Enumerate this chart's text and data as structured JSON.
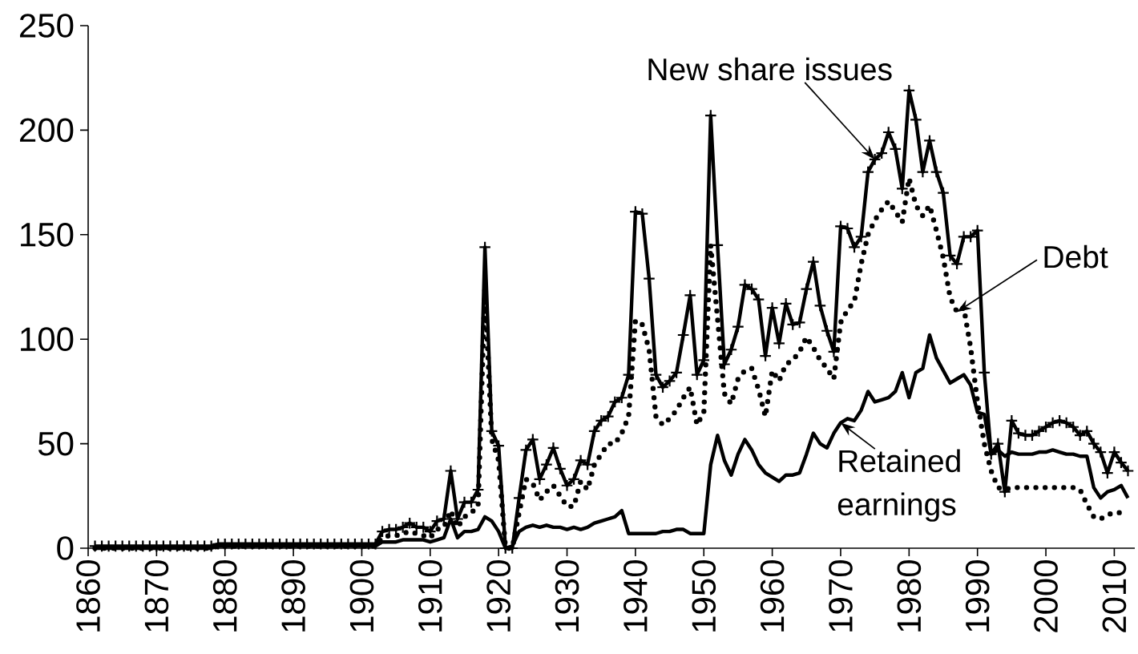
{
  "chart_data": {
    "type": "line",
    "x": [
      1861,
      1862,
      1863,
      1864,
      1865,
      1866,
      1867,
      1868,
      1869,
      1870,
      1871,
      1872,
      1873,
      1874,
      1875,
      1876,
      1877,
      1878,
      1879,
      1880,
      1881,
      1882,
      1883,
      1884,
      1885,
      1886,
      1887,
      1888,
      1889,
      1890,
      1891,
      1892,
      1893,
      1894,
      1895,
      1896,
      1897,
      1898,
      1899,
      1900,
      1901,
      1902,
      1903,
      1904,
      1905,
      1906,
      1907,
      1908,
      1909,
      1910,
      1911,
      1912,
      1913,
      1914,
      1915,
      1916,
      1917,
      1918,
      1919,
      1920,
      1921,
      1922,
      1923,
      1924,
      1925,
      1926,
      1927,
      1928,
      1929,
      1930,
      1931,
      1932,
      1933,
      1934,
      1935,
      1936,
      1937,
      1938,
      1939,
      1940,
      1941,
      1942,
      1943,
      1944,
      1945,
      1946,
      1947,
      1948,
      1949,
      1950,
      1951,
      1952,
      1953,
      1954,
      1955,
      1956,
      1957,
      1958,
      1959,
      1960,
      1961,
      1962,
      1963,
      1964,
      1965,
      1966,
      1967,
      1968,
      1969,
      1970,
      1971,
      1972,
      1973,
      1974,
      1975,
      1976,
      1977,
      1978,
      1979,
      1980,
      1981,
      1982,
      1983,
      1984,
      1985,
      1986,
      1987,
      1988,
      1989,
      1990,
      1991,
      1992,
      1993,
      1994,
      1995,
      1996,
      1997,
      1998,
      1999,
      2000,
      2001,
      2002,
      2003,
      2004,
      2005,
      2006,
      2007,
      2008,
      2009,
      2010,
      2011,
      2012
    ],
    "xlim": [
      1860,
      2013
    ],
    "ylim": [
      0,
      250
    ],
    "xticks": [
      1860,
      1870,
      1880,
      1890,
      1900,
      1910,
      1920,
      1930,
      1940,
      1950,
      1960,
      1970,
      1980,
      1990,
      2000,
      2010
    ],
    "yticks": [
      0,
      50,
      100,
      150,
      200,
      250
    ],
    "series": [
      {
        "name": "New share issues",
        "color": "#000000",
        "marker": "cross",
        "line_style": "solid",
        "values": [
          1,
          1,
          1,
          1,
          1,
          1,
          1,
          1,
          1,
          1,
          1,
          1,
          1,
          1,
          1,
          1,
          1,
          1,
          2,
          2,
          2,
          2,
          2,
          2,
          2,
          2,
          2,
          2,
          2,
          2,
          2,
          2,
          2,
          2,
          2,
          2,
          2,
          2,
          2,
          2,
          2,
          2,
          8,
          9,
          9,
          10,
          12,
          10,
          10,
          8,
          13,
          14,
          37,
          14,
          22,
          22,
          28,
          144,
          56,
          49,
          0,
          0,
          24,
          47,
          52,
          33,
          40,
          48,
          38,
          30,
          33,
          42,
          40,
          56,
          61,
          63,
          70,
          72,
          83,
          161,
          160,
          129,
          83,
          77,
          80,
          84,
          102,
          121,
          83,
          90,
          207,
          145,
          88,
          95,
          106,
          126,
          124,
          119,
          92,
          115,
          98,
          117,
          107,
          108,
          124,
          137,
          116,
          104,
          94,
          154,
          153,
          144,
          149,
          180,
          186,
          189,
          199,
          191,
          172,
          219,
          205,
          180,
          195,
          180,
          170,
          140,
          136,
          149,
          149,
          152,
          84,
          45,
          50,
          27,
          61,
          55,
          54,
          54,
          56,
          58,
          60,
          61,
          60,
          58,
          54,
          56,
          50,
          46,
          36,
          46,
          41,
          37
        ]
      },
      {
        "name": "Debt",
        "color": "#000000",
        "marker": "none",
        "line_style": "dotted",
        "values": [
          0,
          0,
          0,
          0,
          0,
          0,
          0,
          0,
          0,
          0,
          0,
          0,
          0,
          0,
          0,
          0,
          0,
          0,
          1,
          1,
          1,
          1,
          1,
          1,
          1,
          1,
          1,
          1,
          1,
          1,
          1,
          1,
          1,
          1,
          1,
          1,
          1,
          1,
          1,
          1,
          1,
          1,
          5,
          6,
          6,
          7,
          8,
          7,
          6,
          5,
          9,
          10,
          18,
          10,
          15,
          17,
          20,
          125,
          52,
          42,
          0,
          0,
          17,
          33,
          31,
          23,
          27,
          30,
          25,
          20,
          20,
          32,
          28,
          40,
          45,
          50,
          50,
          55,
          63,
          109,
          107,
          95,
          63,
          59,
          62,
          66,
          72,
          77,
          59,
          65,
          145,
          110,
          74,
          69,
          81,
          85,
          86,
          76,
          63,
          85,
          80,
          88,
          90,
          94,
          101,
          96,
          90,
          86,
          81,
          108,
          114,
          118,
          136,
          150,
          157,
          162,
          166,
          161,
          156,
          177,
          164,
          159,
          164,
          152,
          139,
          120,
          113,
          115,
          96,
          70,
          50,
          37,
          29,
          28,
          29,
          29,
          29,
          29,
          29,
          29,
          29,
          29,
          29,
          29,
          28,
          21,
          15,
          14,
          16,
          17,
          17,
          16
        ]
      },
      {
        "name": "Retained earnings",
        "color": "#000000",
        "marker": "none",
        "line_style": "solid",
        "values": [
          0,
          0,
          0,
          0,
          0,
          0,
          0,
          0,
          0,
          0,
          0,
          0,
          0,
          0,
          0,
          0,
          0,
          0,
          1,
          1,
          1,
          1,
          1,
          1,
          1,
          1,
          1,
          1,
          1,
          1,
          1,
          1,
          1,
          1,
          1,
          1,
          1,
          1,
          1,
          1,
          1,
          1,
          3,
          3,
          3,
          4,
          4,
          4,
          4,
          3,
          4,
          5,
          14,
          5,
          8,
          8,
          9,
          15,
          13,
          8,
          0,
          1,
          8,
          10,
          11,
          10,
          11,
          10,
          10,
          9,
          10,
          9,
          10,
          12,
          13,
          14,
          15,
          18,
          7,
          7,
          7,
          7,
          7,
          8,
          8,
          9,
          9,
          7,
          7,
          7,
          40,
          54,
          42,
          35,
          45,
          52,
          47,
          40,
          36,
          34,
          32,
          35,
          35,
          36,
          45,
          55,
          50,
          48,
          55,
          60,
          62,
          61,
          66,
          75,
          70,
          71,
          72,
          75,
          84,
          72,
          84,
          86,
          102,
          91,
          85,
          79,
          81,
          83,
          78,
          65,
          64,
          45,
          47,
          44,
          46,
          45,
          45,
          45,
          46,
          46,
          47,
          46,
          45,
          45,
          44,
          44,
          29,
          24,
          27,
          28,
          30,
          24
        ]
      }
    ]
  }
}
